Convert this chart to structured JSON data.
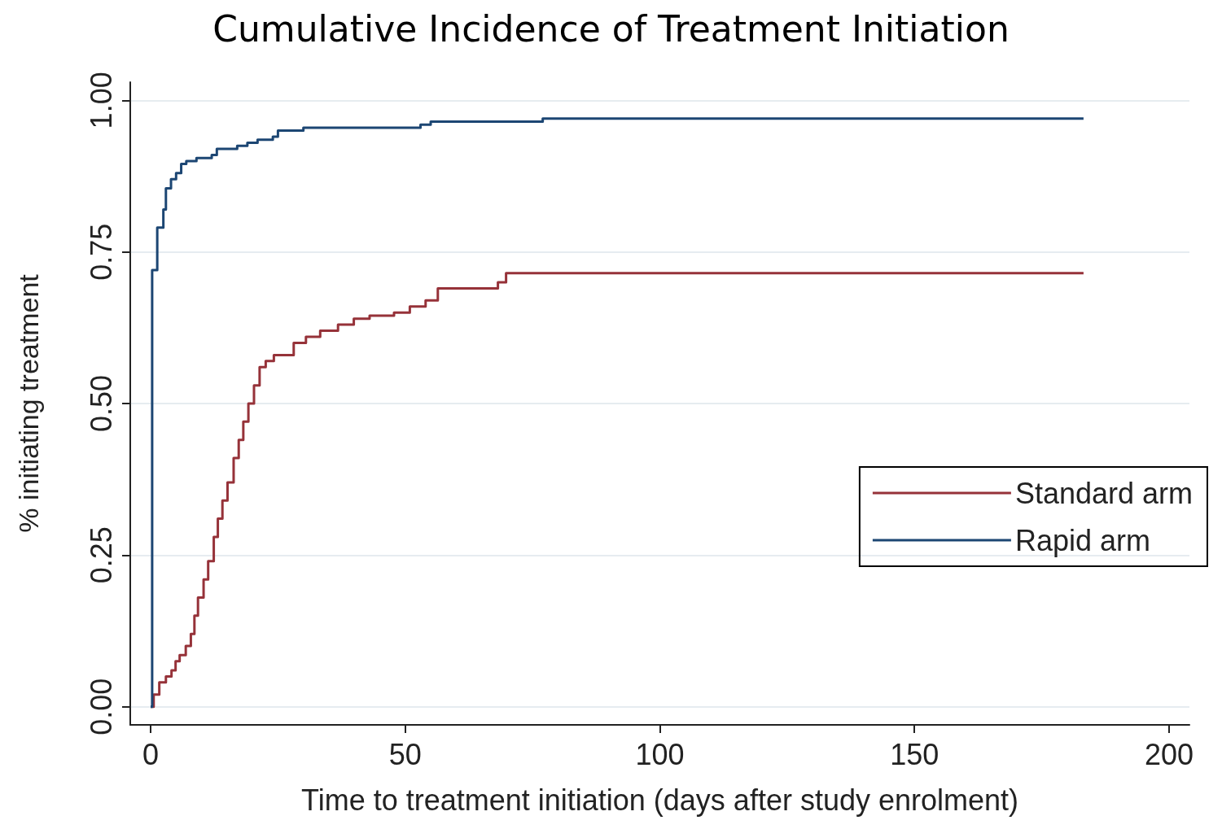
{
  "chart_data": {
    "type": "step",
    "title": "Cumulative Incidence of Treatment Initiation",
    "xlabel": "Time to treatment initiation (days after study enrolment)",
    "ylabel": "% initiating treatment",
    "xlim": [
      -4,
      204
    ],
    "xticks": [
      0,
      50,
      100,
      150,
      200
    ],
    "ylim": [
      -0.03,
      1.03
    ],
    "yticks": [
      {
        "value": 0,
        "label": "0.00"
      },
      {
        "value": 0.25,
        "label": "0.25"
      },
      {
        "value": 0.5,
        "label": "0.50"
      },
      {
        "value": 0.75,
        "label": "0.75"
      },
      {
        "value": 1,
        "label": "1.00"
      }
    ],
    "grid": "y",
    "legend": "right",
    "line_style": "solid",
    "marker": "none",
    "series": [
      {
        "name": "Standard arm",
        "color": "#963239",
        "x": [
          0,
          0.6,
          1.7,
          3,
          4.1,
          4.9,
          5.7,
          6.9,
          7.9,
          8.6,
          9.3,
          10.4,
          11.3,
          12.4,
          13.2,
          14.1,
          15.1,
          16.3,
          17.3,
          18.2,
          19.2,
          20.3,
          21.4,
          22.6,
          24.2,
          28.1,
          30.5,
          33.3,
          36.8,
          39.9,
          43,
          47.8,
          50.9,
          54,
          56.4,
          68.2,
          69.8,
          183.2
        ],
        "values": [
          0,
          0.02,
          0.04,
          0.05,
          0.06,
          0.075,
          0.085,
          0.1,
          0.12,
          0.15,
          0.18,
          0.21,
          0.24,
          0.28,
          0.31,
          0.34,
          0.37,
          0.41,
          0.44,
          0.47,
          0.5,
          0.53,
          0.56,
          0.57,
          0.58,
          0.6,
          0.61,
          0.62,
          0.63,
          0.64,
          0.645,
          0.65,
          0.66,
          0.67,
          0.69,
          0.7,
          0.715,
          0.715
        ]
      },
      {
        "name": "Rapid arm",
        "color": "#1c4673",
        "x": [
          0,
          0.3,
          1.3,
          2.5,
          3,
          4,
          5,
          6,
          7,
          9,
          12,
          13,
          17,
          19,
          21,
          24,
          25,
          30,
          53,
          55,
          77,
          183.2
        ],
        "values": [
          0,
          0.72,
          0.79,
          0.82,
          0.855,
          0.87,
          0.88,
          0.895,
          0.9,
          0.905,
          0.91,
          0.92,
          0.925,
          0.93,
          0.935,
          0.94,
          0.95,
          0.955,
          0.96,
          0.965,
          0.97,
          0.97
        ]
      }
    ]
  }
}
